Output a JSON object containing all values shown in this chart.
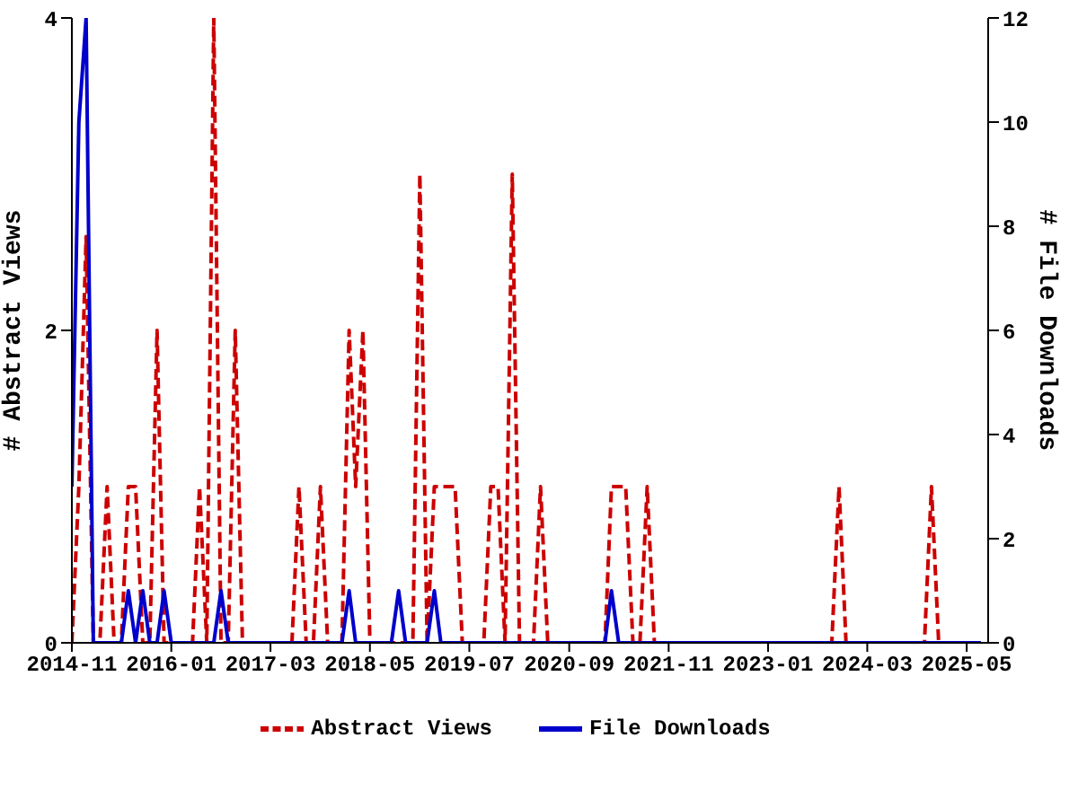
{
  "chart_data": {
    "type": "line",
    "ylabel": "# Abstract Views",
    "y2label": "# File Downloads",
    "x": [
      "2014-11",
      "2014-12",
      "2015-01",
      "2015-02",
      "2015-03",
      "2015-04",
      "2015-05",
      "2015-06",
      "2015-07",
      "2015-08",
      "2015-09",
      "2015-10",
      "2015-11",
      "2015-12",
      "2016-01",
      "2016-02",
      "2016-03",
      "2016-04",
      "2016-05",
      "2016-06",
      "2016-07",
      "2016-08",
      "2016-09",
      "2016-10",
      "2016-11",
      "2016-12",
      "2017-01",
      "2017-02",
      "2017-03",
      "2017-04",
      "2017-05",
      "2017-06",
      "2017-07",
      "2017-08",
      "2017-09",
      "2017-10",
      "2017-11",
      "2017-12",
      "2018-01",
      "2018-02",
      "2018-03",
      "2018-04",
      "2018-05",
      "2018-06",
      "2018-07",
      "2018-08",
      "2018-09",
      "2018-10",
      "2018-11",
      "2018-12",
      "2019-01",
      "2019-02",
      "2019-03",
      "2019-04",
      "2019-05",
      "2019-06",
      "2019-07",
      "2019-08",
      "2019-09",
      "2019-10",
      "2019-11",
      "2019-12",
      "2020-01",
      "2020-02",
      "2020-03",
      "2020-04",
      "2020-05",
      "2020-06",
      "2020-07",
      "2020-08",
      "2020-09",
      "2020-10",
      "2020-11",
      "2020-12",
      "2021-01",
      "2021-02",
      "2021-03",
      "2021-04",
      "2021-05",
      "2021-06",
      "2021-07",
      "2021-08",
      "2021-09",
      "2021-10",
      "2021-11",
      "2021-12",
      "2022-01",
      "2022-02",
      "2022-03",
      "2022-04",
      "2022-05",
      "2022-06",
      "2022-07",
      "2022-08",
      "2022-09",
      "2022-10",
      "2022-11",
      "2022-12",
      "2023-01",
      "2023-02",
      "2023-03",
      "2023-04",
      "2023-05",
      "2023-06",
      "2023-07",
      "2023-08",
      "2023-09",
      "2023-10",
      "2023-11",
      "2023-12",
      "2024-01",
      "2024-02",
      "2024-03",
      "2024-04",
      "2024-05",
      "2024-06",
      "2024-07",
      "2024-08",
      "2024-09",
      "2024-10",
      "2024-11",
      "2024-12",
      "2025-01",
      "2025-02",
      "2025-03",
      "2025-04",
      "2025-05",
      "2025-06",
      "2025-07"
    ],
    "series": [
      {
        "name": "Abstract Views",
        "color": "#cc0000",
        "line_style": "dashed",
        "values": [
          0,
          1,
          2.6,
          0,
          0,
          1,
          0,
          0,
          1,
          1,
          0,
          0,
          2,
          0,
          0,
          0,
          0,
          0,
          1,
          0,
          4,
          0,
          0,
          2,
          0,
          0,
          0,
          0,
          0,
          0,
          0,
          0,
          1,
          0,
          0,
          1,
          0,
          0,
          0,
          2,
          1,
          2,
          0,
          0,
          0,
          0,
          0,
          0,
          0,
          3,
          0,
          1,
          1,
          1,
          1,
          0,
          0,
          0,
          0,
          1,
          1,
          0,
          3,
          0,
          0,
          0,
          1,
          0,
          0,
          0,
          0,
          0,
          0,
          0,
          0,
          0,
          1,
          1,
          1,
          0,
          0,
          1,
          0,
          0,
          0,
          0,
          0,
          0,
          0,
          0,
          0,
          0,
          0,
          0,
          0,
          0,
          0,
          0,
          0,
          0,
          0,
          0,
          0,
          0,
          0,
          0,
          0,
          0,
          1,
          0,
          0,
          0,
          0,
          0,
          0,
          0,
          0,
          0,
          0,
          0,
          0,
          1,
          0,
          0,
          0,
          0,
          null,
          null,
          null
        ]
      },
      {
        "name": "File Downloads",
        "color": "#0000cc",
        "line_style": "solid",
        "axis": "y2",
        "values": [
          3,
          10,
          12,
          0,
          0,
          0,
          0,
          0,
          1,
          0,
          1,
          0,
          0,
          1,
          0,
          0,
          0,
          0,
          0,
          0,
          0,
          1,
          0,
          0,
          0,
          0,
          0,
          0,
          0,
          0,
          0,
          0,
          0,
          0,
          0,
          0,
          0,
          0,
          0,
          1,
          0,
          0,
          0,
          0,
          0,
          0,
          1,
          0,
          0,
          0,
          0,
          1,
          0,
          0,
          0,
          0,
          0,
          0,
          0,
          0,
          0,
          0,
          0,
          0,
          0,
          0,
          0,
          0,
          0,
          0,
          0,
          0,
          0,
          0,
          0,
          0,
          1,
          0,
          0,
          0,
          0,
          0,
          0,
          0,
          0,
          0,
          0,
          0,
          0,
          0,
          0,
          0,
          0,
          0,
          0,
          0,
          0,
          0,
          0,
          0,
          0,
          0,
          0,
          0,
          0,
          0,
          0,
          0,
          0,
          0,
          0,
          0,
          0,
          0,
          0,
          0,
          0,
          0,
          0,
          0,
          0,
          0,
          0,
          0,
          0,
          0,
          0,
          0,
          0
        ]
      }
    ],
    "xlim": [
      "2014-11",
      "2025-08"
    ],
    "xticks": [
      "2014-11",
      "2016-01",
      "2017-03",
      "2018-05",
      "2019-07",
      "2020-09",
      "2021-11",
      "2023-01",
      "2024-03",
      "2025-05"
    ],
    "ylim": [
      0,
      4
    ],
    "yticks": [
      0,
      2,
      4
    ],
    "y2lim": [
      0,
      12
    ],
    "y2ticks": [
      0,
      2,
      4,
      6,
      8,
      10,
      12
    ],
    "legend": "bottom",
    "grid": false
  }
}
